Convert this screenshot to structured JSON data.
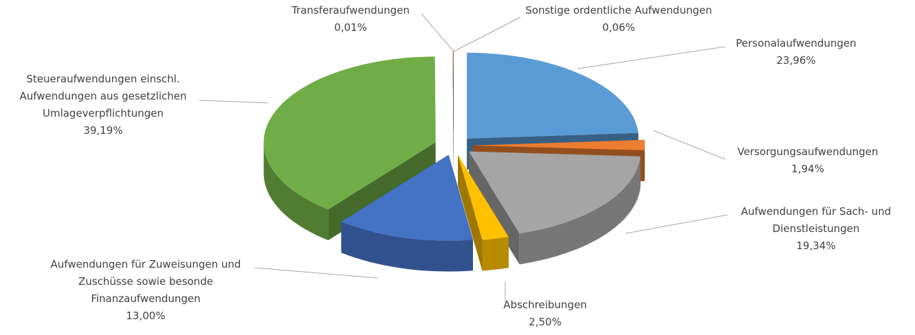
{
  "chart_data": {
    "type": "pie3d",
    "categories": [
      "Personalaufwendungen",
      "Versorgungsaufwendungen",
      "Aufwendungen für Sach- und\nDienstleistungen",
      "Abschreibungen",
      "Aufwendungen für Zuweisungen und\nZuschüsse sowie besonde\nFinanzaufwendungen",
      "Steueraufwendungen einschl.\nAufwendungen aus gesetzlichen\nUmlageverpflichtungen",
      "Transferaufwendungen",
      "Sonstige ordentliche Aufwendungen"
    ],
    "values": [
      23.96,
      1.94,
      19.34,
      2.5,
      13.0,
      39.19,
      0.01,
      0.06
    ],
    "value_labels": [
      "23,96%",
      "1,94%",
      "19,34%",
      "2,50%",
      "13,00%",
      "39,19%",
      "0,01%",
      "0,06%"
    ],
    "colors": [
      "#5b9bd5",
      "#ed7d31",
      "#a5a5a5",
      "#ffc000",
      "#4472c4",
      "#70ad47",
      "#264478",
      "#9e480e"
    ]
  }
}
